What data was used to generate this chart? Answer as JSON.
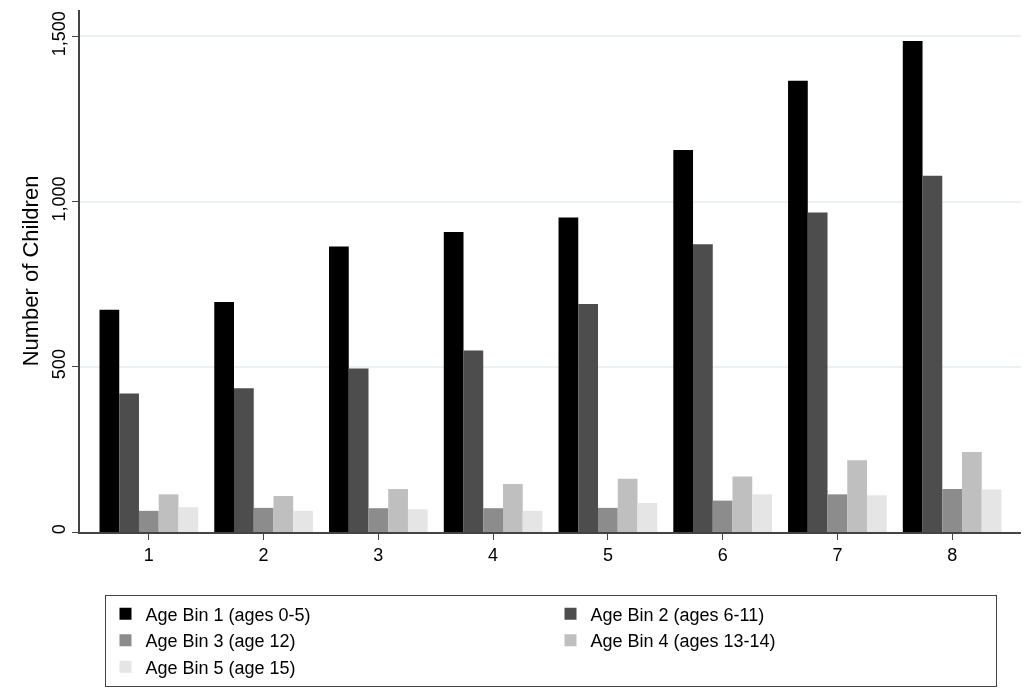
{
  "chart_data": {
    "type": "bar",
    "ylabel": "Number of Children",
    "categories": [
      "1",
      "2",
      "3",
      "4",
      "5",
      "6",
      "7",
      "8"
    ],
    "series": [
      {
        "name": "Age Bin 1 (ages 0-5)",
        "color": "#000000",
        "values": [
          673,
          696,
          864,
          908,
          952,
          1156,
          1366,
          1486
        ]
      },
      {
        "name": "Age Bin 2 (ages 6-11)",
        "color": "#4d4d4d",
        "values": [
          419,
          435,
          495,
          549,
          690,
          871,
          967,
          1078
        ]
      },
      {
        "name": "Age Bin 3 (age 12)",
        "color": "#8c8c8c",
        "values": [
          64,
          73,
          72,
          72,
          73,
          95,
          114,
          130
        ]
      },
      {
        "name": "Age Bin 4 (ages 13-14)",
        "color": "#bfbfbf",
        "values": [
          114,
          109,
          130,
          145,
          161,
          168,
          217,
          242
        ]
      },
      {
        "name": "Age Bin 5 (age 15)",
        "color": "#e5e5e5",
        "values": [
          75,
          64,
          69,
          64,
          88,
          114,
          111,
          129
        ]
      }
    ],
    "ylim": [
      0,
      1580
    ],
    "yticks": [
      0,
      500,
      {
        "value": 1000,
        "label": "1,000"
      },
      {
        "value": 1500,
        "label": "1,500"
      }
    ],
    "grid": "y",
    "legend": "bottom"
  }
}
